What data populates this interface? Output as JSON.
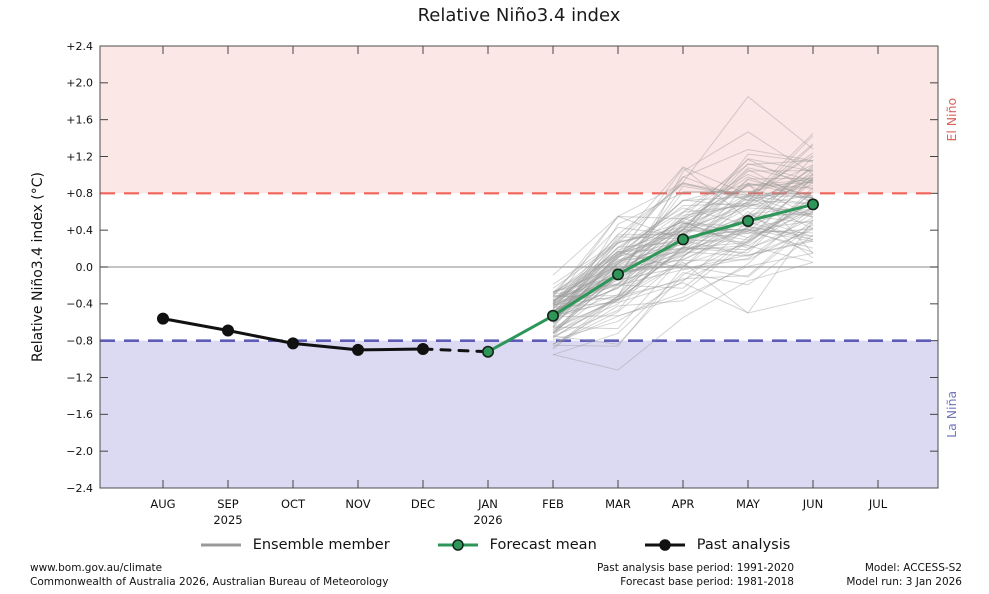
{
  "page": {
    "title": "Relative Niño3.4 index"
  },
  "chart_data": {
    "type": "line",
    "title": "Relative Niño3.4 index",
    "xlabel": "",
    "ylabel": "Relative Niño3.4 index (°C)",
    "ylim": [
      -2.4,
      2.4
    ],
    "ytick_values": [
      2.4,
      2.0,
      1.6,
      1.2,
      0.8,
      0.4,
      0.0,
      -0.4,
      -0.8,
      -1.2,
      -1.6,
      -2.0,
      -2.4
    ],
    "ytick_labels": [
      "+2.4",
      "+2.0",
      "+1.6",
      "+1.2",
      "+0.8",
      "+0.4",
      "0.0",
      "−0.4",
      "−0.8",
      "−1.2",
      "−1.6",
      "−2.0",
      "−2.4"
    ],
    "categories": [
      "AUG",
      "SEP",
      "OCT",
      "NOV",
      "DEC",
      "JAN",
      "FEB",
      "MAR",
      "APR",
      "MAY",
      "JUN",
      "JUL"
    ],
    "year_labels": [
      {
        "month_index": 1,
        "text": "2025"
      },
      {
        "month_index": 5,
        "text": "2026"
      }
    ],
    "zero_line_value": 0.0,
    "zero_line_color": "#a0a0a0",
    "thresholds": {
      "el_nino_value": 0.8,
      "la_nina_value": -0.8,
      "el_nino_line_color": "#ef645a",
      "la_nina_line_color": "#5d5db8"
    },
    "regions": {
      "el_nino_fill": "#fbe7e5",
      "la_nina_fill": "#dcdaf3",
      "el_nino_label": "El Niño",
      "la_nina_label": "La Niña",
      "el_nino_label_color": "#d9645e",
      "la_nina_label_color": "#7676bd"
    },
    "series": [
      {
        "name": "Past analysis",
        "style": "solid",
        "color": "#111111",
        "marker": true,
        "x": [
          "AUG",
          "SEP",
          "OCT",
          "NOV",
          "DEC"
        ],
        "values": [
          -0.56,
          -0.69,
          -0.83,
          -0.9,
          -0.89
        ]
      },
      {
        "name": "Past analysis (provisional)",
        "style": "dashed",
        "color": "#111111",
        "marker": false,
        "x": [
          "DEC",
          "JAN"
        ],
        "values": [
          -0.89,
          -0.92
        ]
      },
      {
        "name": "Forecast mean",
        "style": "solid",
        "color": "#2e9658",
        "marker": true,
        "marker_edge": "#15241a",
        "x": [
          "JAN",
          "FEB",
          "MAR",
          "APR",
          "MAY",
          "JUN"
        ],
        "values": [
          -0.92,
          -0.53,
          -0.08,
          0.3,
          0.5,
          0.68
        ]
      }
    ],
    "ensemble": {
      "name": "Ensemble member",
      "color": "#999999",
      "opacity": 0.42,
      "count": 99,
      "x": [
        "FEB",
        "MAR",
        "APR",
        "MAY",
        "JUN"
      ],
      "mean": [
        -0.53,
        -0.08,
        0.3,
        0.5,
        0.68
      ],
      "spread_sd": [
        0.2,
        0.3,
        0.33,
        0.38,
        0.36
      ],
      "approx_min": [
        -1.05,
        -1.12,
        -0.65,
        -0.5,
        -0.4
      ],
      "approx_max": [
        -0.08,
        0.55,
        1.3,
        1.85,
        1.45
      ],
      "outlier_members": [
        [
          -0.4,
          0.3,
          0.92,
          1.85,
          1.28
        ],
        [
          -0.95,
          -1.12,
          -0.55,
          -0.15,
          0.05
        ]
      ]
    }
  },
  "legend": {
    "items": [
      {
        "label": "Ensemble member",
        "kind": "ensemble"
      },
      {
        "label": "Forecast mean",
        "kind": "forecast"
      },
      {
        "label": "Past analysis",
        "kind": "past"
      }
    ]
  },
  "footer": {
    "left_line1": "www.bom.gov.au/climate",
    "left_line2": "Commonwealth of Australia 2026, Australian Bureau of Meteorology",
    "center_line1": "Past analysis base period: 1991-2020",
    "center_line2": "Forecast base period: 1981-2018",
    "right_line1": "Model: ACCESS-S2",
    "right_line2": "Model run: 3 Jan 2026"
  }
}
